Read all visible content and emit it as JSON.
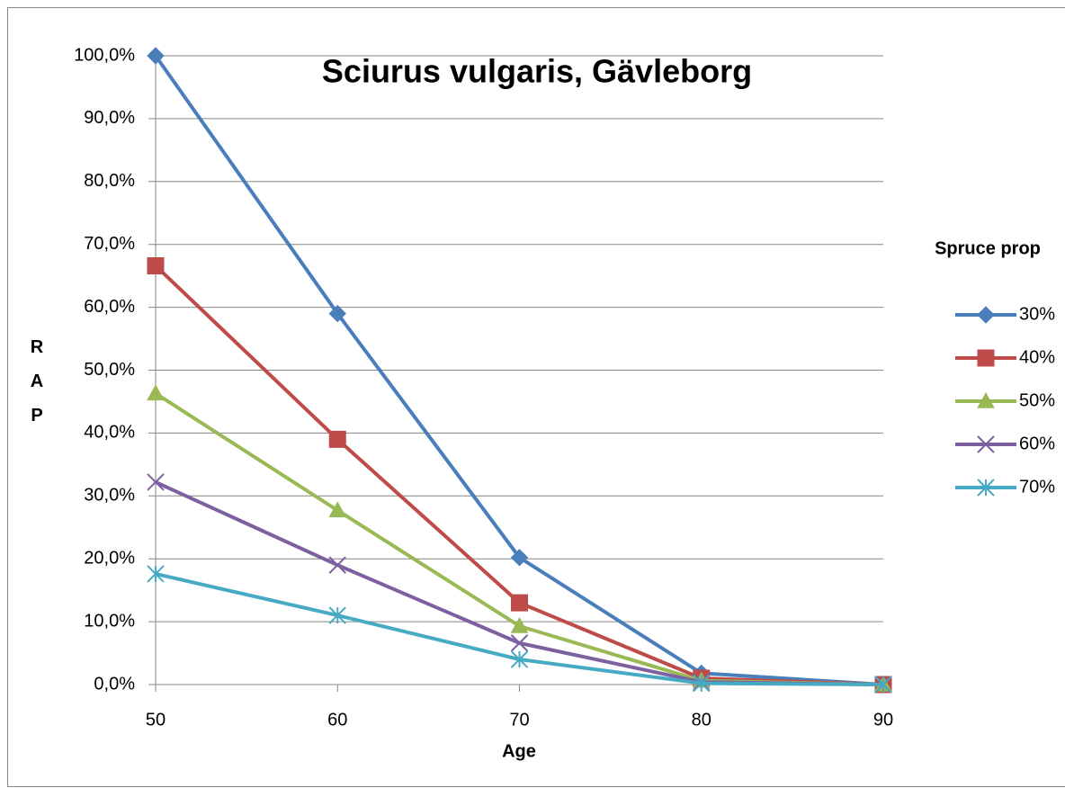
{
  "chart_data": {
    "type": "line",
    "title": "Sciurus vulgaris, Gävleborg",
    "x_label": "Age",
    "y_label": "RAP",
    "legend_title": "Spruce prop",
    "legend_position": "right",
    "grid": true,
    "x": [
      50,
      60,
      70,
      80,
      90
    ],
    "xlim": [
      50,
      90
    ],
    "xticks": [
      50,
      60,
      70,
      80,
      90
    ],
    "ylim": [
      0,
      100
    ],
    "yticks": [
      {
        "value": 0,
        "label": "0,0%"
      },
      {
        "value": 10,
        "label": "10,0%"
      },
      {
        "value": 20,
        "label": "20,0%"
      },
      {
        "value": 30,
        "label": "30,0%"
      },
      {
        "value": 40,
        "label": "40,0%"
      },
      {
        "value": 50,
        "label": "50,0%"
      },
      {
        "value": 60,
        "label": "60,0%"
      },
      {
        "value": 70,
        "label": "70,0%"
      },
      {
        "value": 80,
        "label": "80,0%"
      },
      {
        "value": 90,
        "label": "90,0%"
      },
      {
        "value": 100,
        "label": "100,0%"
      }
    ],
    "series": [
      {
        "name": "30%",
        "color": "#4a7ebb",
        "marker": "diamond",
        "values": [
          100,
          59,
          20.2,
          1.8,
          0
        ]
      },
      {
        "name": "40%",
        "color": "#be4b48",
        "marker": "square",
        "values": [
          66.6,
          39,
          13,
          1,
          0
        ]
      },
      {
        "name": "50%",
        "color": "#98b954",
        "marker": "triangle",
        "values": [
          46.3,
          27.7,
          9.3,
          0.6,
          0
        ]
      },
      {
        "name": "60%",
        "color": "#7d60a0",
        "marker": "x",
        "values": [
          32.2,
          19,
          6.6,
          0.4,
          0
        ]
      },
      {
        "name": "70%",
        "color": "#46aac5",
        "marker": "star",
        "values": [
          17.6,
          11,
          4,
          0.2,
          0
        ]
      }
    ]
  }
}
